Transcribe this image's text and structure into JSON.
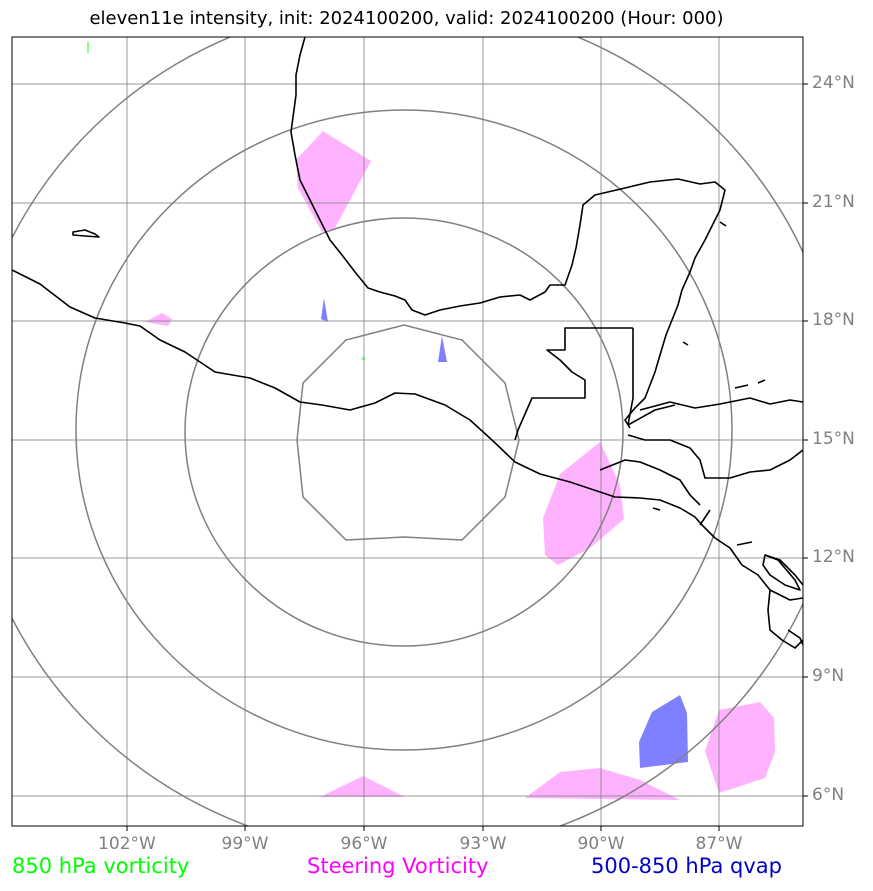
{
  "title": "eleven11e intensity, init: 2024100200, valid: 2024100200 (Hour: 000)",
  "lon_labels": [
    "102°W",
    "99°W",
    "96°W",
    "93°W",
    "90°W",
    "87°W"
  ],
  "lat_labels": [
    "24°N",
    "21°N",
    "18°N",
    "15°N",
    "12°N",
    "9°N",
    "6°N"
  ],
  "legend": {
    "vort850": {
      "label": "850 hPa vorticity",
      "color": "#00ff00"
    },
    "steering": {
      "label": "Steering Vorticity",
      "color": "#ff00ff"
    },
    "qvap": {
      "label": "500-850 hPa qvap",
      "color": "#0000cc"
    }
  },
  "colors": {
    "gridline": "#808080",
    "range_ring": "#808080",
    "coastline": "#000000",
    "steering_fill": "#ffb3ff",
    "qvap_fill": "#7f7fff"
  }
}
